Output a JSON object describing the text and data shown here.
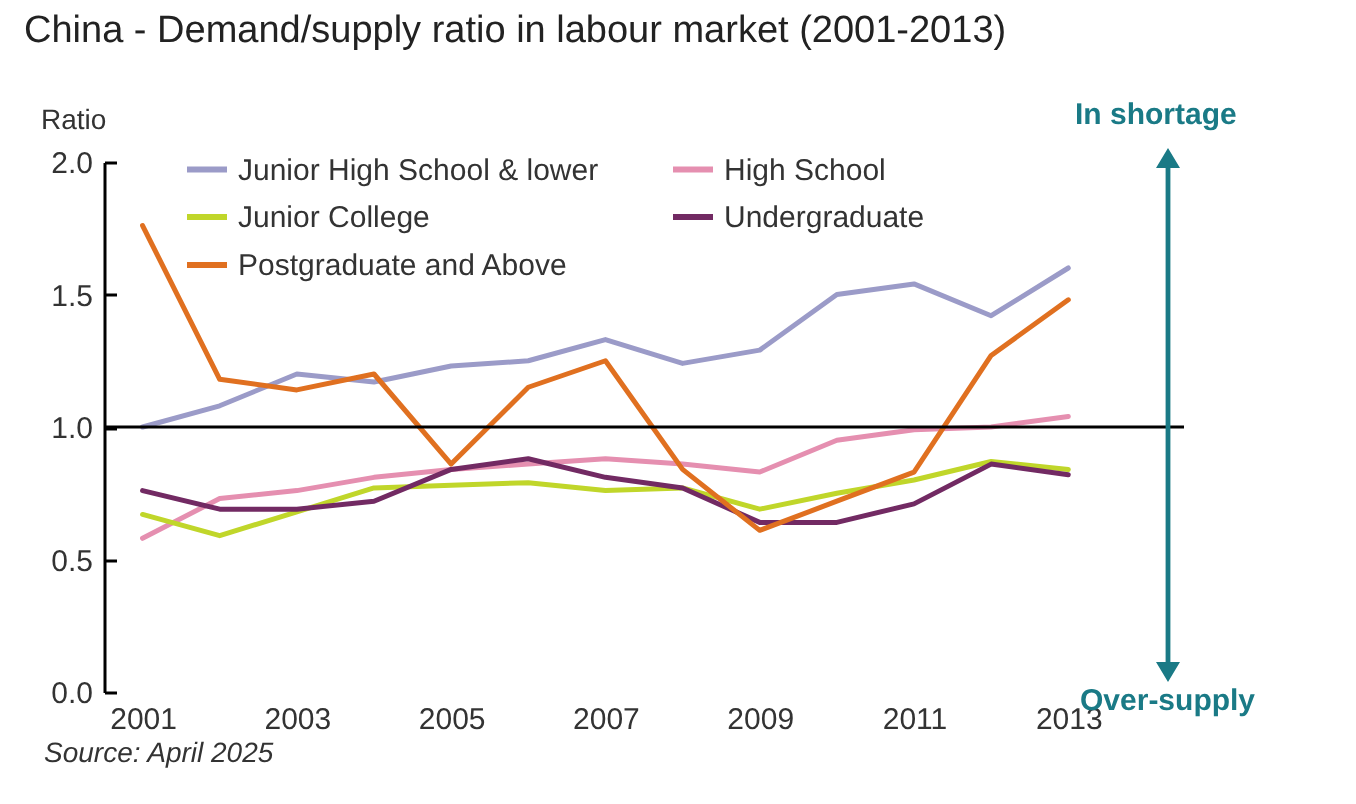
{
  "chart_data": {
    "type": "line",
    "title": "China - Demand/supply ratio in labour market (2001-2013)",
    "ylabel": "Ratio",
    "x": [
      2001,
      2002,
      2003,
      2004,
      2005,
      2006,
      2007,
      2008,
      2009,
      2010,
      2011,
      2012,
      2013
    ],
    "xlim": [
      2000.5,
      2014.5
    ],
    "xticks": [
      2001,
      2003,
      2005,
      2007,
      2009,
      2011,
      2013
    ],
    "ylim": [
      0,
      2
    ],
    "yticks": [
      {
        "value": 0,
        "label": "0.0"
      },
      {
        "value": 0.5,
        "label": "0.5"
      },
      {
        "value": 1,
        "label": "1.0"
      },
      {
        "value": 1.5,
        "label": "1.5"
      },
      {
        "value": 2,
        "label": "2.0"
      }
    ],
    "series": [
      {
        "name": "Junior High School & lower",
        "color": "#9b9bc8",
        "values": [
          1.0,
          1.08,
          1.2,
          1.17,
          1.23,
          1.25,
          1.33,
          1.24,
          1.29,
          1.5,
          1.54,
          1.42,
          1.6
        ]
      },
      {
        "name": "High School",
        "color": "#e58fb0",
        "values": [
          0.58,
          0.73,
          0.76,
          0.81,
          0.84,
          0.86,
          0.88,
          0.86,
          0.83,
          0.95,
          0.99,
          1.0,
          1.04
        ]
      },
      {
        "name": "Junior College",
        "color": "#c0d62a",
        "values": [
          0.67,
          0.59,
          0.68,
          0.77,
          0.78,
          0.79,
          0.76,
          0.77,
          0.69,
          0.75,
          0.8,
          0.87,
          0.84
        ]
      },
      {
        "name": "Undergraduate",
        "color": "#722a63",
        "values": [
          0.76,
          0.69,
          0.69,
          0.72,
          0.84,
          0.88,
          0.81,
          0.77,
          0.64,
          0.64,
          0.71,
          0.86,
          0.82
        ]
      },
      {
        "name": "Postgraduate and Above",
        "color": "#e07020",
        "values": [
          1.76,
          1.18,
          1.14,
          1.2,
          0.86,
          1.15,
          1.25,
          0.84,
          0.61,
          0.72,
          0.83,
          1.27,
          1.48
        ]
      }
    ],
    "ref_lines": [
      {
        "axis": "y",
        "value": 1,
        "color": "#000000"
      }
    ],
    "annotations": [
      "In shortage",
      "Over-supply",
      "Source: April 2025"
    ],
    "legend": "top",
    "grid": false,
    "marker": "none",
    "line_style": "solid"
  }
}
